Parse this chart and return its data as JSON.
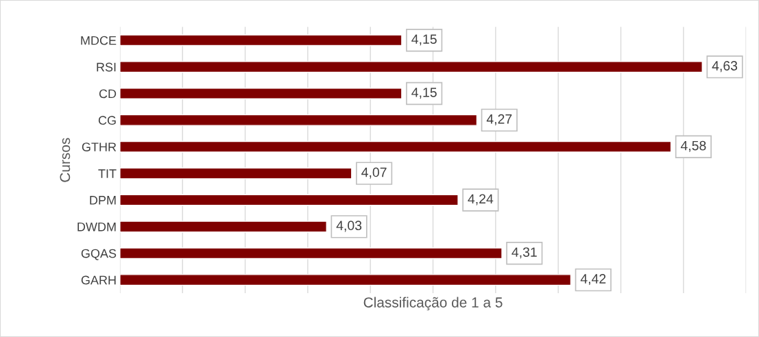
{
  "chart_data": {
    "type": "bar",
    "orientation": "horizontal",
    "xlabel": "Classificação de 1 a 5",
    "ylabel": "Cursos",
    "categories": [
      "MDCE",
      "RSI",
      "CD",
      "CG",
      "GTHR",
      "TIT",
      "DPM",
      "DWDM",
      "GQAS",
      "GARH"
    ],
    "values": [
      4.15,
      4.63,
      4.15,
      4.27,
      4.58,
      4.07,
      4.24,
      4.03,
      4.31,
      4.42
    ],
    "value_labels": [
      "4,15",
      "4,63",
      "4,15",
      "4,27",
      "4,58",
      "4,07",
      "4,24",
      "4,03",
      "4,31",
      "4,42"
    ],
    "color": "#7f0000",
    "xlim": [
      3.7,
      4.7
    ],
    "xticks": [
      {
        "value": 3.7,
        "label": null
      },
      {
        "value": 3.8,
        "label": null
      },
      {
        "value": 3.9,
        "label": null
      },
      {
        "value": 4.0,
        "label": null
      },
      {
        "value": 4.1,
        "label": null
      },
      {
        "value": 4.2,
        "label": null
      },
      {
        "value": 4.3,
        "label": null
      },
      {
        "value": 4.4,
        "label": null
      },
      {
        "value": 4.5,
        "label": null
      },
      {
        "value": 4.6,
        "label": null
      },
      {
        "value": 4.7,
        "label": null
      }
    ],
    "grid": "x",
    "tick_labels": "y"
  }
}
